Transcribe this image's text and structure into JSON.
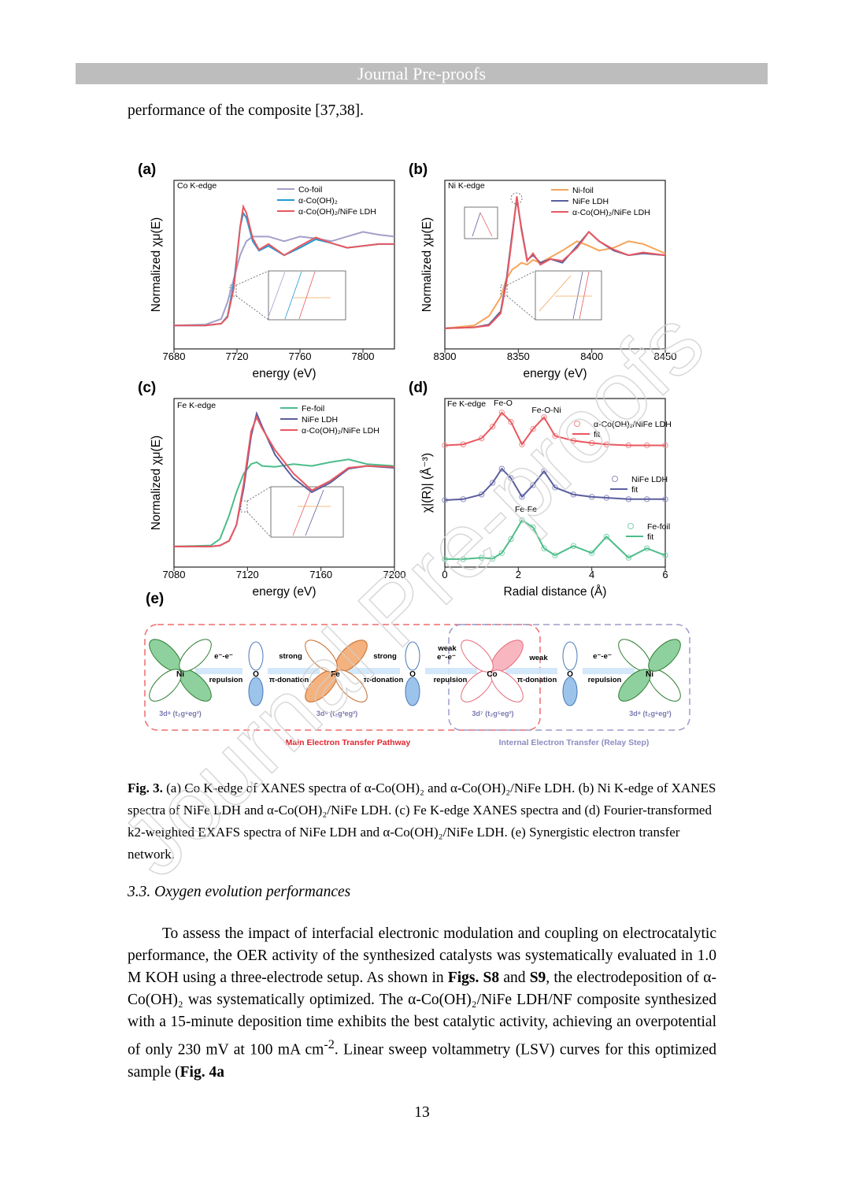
{
  "header": {
    "title": "Journal Pre-proofs"
  },
  "intro": "performance of the composite [37,38].",
  "chart_data": [
    {
      "type": "line",
      "label": "(a)",
      "annotation": "Co K-edge",
      "xlabel": "energy (eV)",
      "ylabel": "Normalized χμ(E)",
      "x": [
        7680,
        7700,
        7710,
        7714,
        7718,
        7722,
        7724,
        7726,
        7730,
        7734,
        7740,
        7750,
        7760,
        7770,
        7780,
        7790,
        7800,
        7810,
        7820
      ],
      "xlim": [
        7680,
        7820
      ],
      "xticks": [
        7680,
        7720,
        7760,
        7800
      ],
      "ylim": [
        -0.2,
        1.6
      ],
      "series": [
        {
          "name": "Co-foil",
          "color": "#a39fc9",
          "values": [
            0.05,
            0.06,
            0.12,
            0.3,
            0.55,
            0.8,
            0.88,
            0.95,
            1.0,
            1.0,
            1.0,
            0.95,
            1.0,
            0.98,
            0.95,
            1.0,
            1.05,
            1.02,
            1.0
          ]
        },
        {
          "name": "α-Co(OH)₂",
          "color": "#1f9bd7",
          "values": [
            0.05,
            0.05,
            0.07,
            0.15,
            0.5,
            1.1,
            1.25,
            1.2,
            0.95,
            0.85,
            0.9,
            0.8,
            0.88,
            0.97,
            0.93,
            0.88,
            0.9,
            0.92,
            0.92
          ]
        },
        {
          "name": "α-Co(OH)₂/NiFe LDH",
          "color": "#e8585f",
          "values": [
            0.05,
            0.05,
            0.07,
            0.14,
            0.45,
            1.1,
            1.32,
            1.25,
            0.98,
            0.86,
            0.92,
            0.8,
            0.9,
            0.99,
            0.93,
            0.88,
            0.9,
            0.92,
            0.92
          ]
        }
      ]
    },
    {
      "type": "line",
      "label": "(b)",
      "annotation": "Ni K-edge",
      "xlabel": "energy (eV)",
      "ylabel": "Normalized χμ(E)",
      "x": [
        8300,
        8320,
        8330,
        8338,
        8342,
        8346,
        8349,
        8352,
        8356,
        8360,
        8365,
        8372,
        8380,
        8390,
        8398,
        8405,
        8415,
        8425,
        8435,
        8450
      ],
      "xlim": [
        8300,
        8450
      ],
      "xticks": [
        8300,
        8350,
        8400,
        8450
      ],
      "ylim": [
        -0.2,
        1.6
      ],
      "series": [
        {
          "name": "Ni-foil",
          "color": "#f5a55a",
          "values": [
            0.02,
            0.05,
            0.15,
            0.35,
            0.55,
            0.65,
            0.68,
            0.72,
            0.7,
            0.75,
            0.72,
            0.78,
            0.85,
            0.95,
            0.9,
            0.85,
            0.88,
            0.95,
            0.92,
            0.82
          ]
        },
        {
          "name": "NiFe LDH",
          "color": "#5b5e9e",
          "values": [
            0.02,
            0.03,
            0.06,
            0.2,
            0.55,
            1.05,
            1.4,
            1.1,
            0.75,
            0.8,
            0.72,
            0.76,
            0.72,
            0.9,
            1.05,
            0.95,
            0.85,
            0.8,
            0.82,
            0.8
          ]
        },
        {
          "name": "α-Co(OH)₂/NiFe LDH",
          "color": "#e8585f",
          "values": [
            0.02,
            0.03,
            0.05,
            0.18,
            0.52,
            1.02,
            1.43,
            1.08,
            0.74,
            0.82,
            0.7,
            0.76,
            0.74,
            0.88,
            1.05,
            0.95,
            0.86,
            0.8,
            0.83,
            0.8
          ]
        }
      ]
    },
    {
      "type": "line",
      "label": "(c)",
      "annotation": "Fe K-edge",
      "xlabel": "energy (eV)",
      "ylabel": "Normalized χμ(E)",
      "x": [
        7080,
        7100,
        7105,
        7110,
        7114,
        7118,
        7122,
        7125,
        7128,
        7135,
        7145,
        7155,
        7165,
        7175,
        7185,
        7200
      ],
      "xlim": [
        7080,
        7200
      ],
      "xticks": [
        7080,
        7120,
        7160,
        7200
      ],
      "ylim": [
        -0.2,
        1.6
      ],
      "series": [
        {
          "name": "Fe-foil",
          "color": "#4dbd8a",
          "values": [
            0.02,
            0.03,
            0.1,
            0.35,
            0.6,
            0.8,
            0.9,
            0.92,
            0.88,
            0.87,
            0.9,
            0.88,
            0.92,
            0.95,
            0.9,
            0.88
          ]
        },
        {
          "name": "NiFe LDH",
          "color": "#5b5e9e",
          "values": [
            0.02,
            0.02,
            0.03,
            0.08,
            0.25,
            0.65,
            1.2,
            1.44,
            1.3,
            1.0,
            0.75,
            0.6,
            0.7,
            0.85,
            0.88,
            0.86
          ]
        },
        {
          "name": "α-Co(OH)₂/NiFe LDH",
          "color": "#e8585f",
          "values": [
            0.02,
            0.02,
            0.03,
            0.08,
            0.25,
            0.7,
            1.25,
            1.4,
            1.28,
            1.05,
            0.8,
            0.62,
            0.72,
            0.86,
            0.88,
            0.87
          ]
        }
      ]
    },
    {
      "type": "line",
      "label": "(d)",
      "annotations": [
        "Fe K-edge",
        "Fe-O",
        "Fe-O-Ni",
        "Fe-Fe"
      ],
      "xlabel": "Radial distance (Å)",
      "ylabel": "χ|(R)| (Å⁻³)",
      "x": [
        0,
        0.5,
        1,
        1.3,
        1.55,
        1.8,
        2.1,
        2.4,
        2.7,
        3,
        3.5,
        4,
        4.4,
        5,
        5.5,
        6
      ],
      "xlim": [
        0,
        6
      ],
      "xticks": [
        0,
        2,
        4,
        6
      ],
      "ylim": [
        0,
        3.6
      ],
      "series": [
        {
          "name": "α-Co(OH)₂/NiFe LDH",
          "style": "markers",
          "color": "#ef8a8d",
          "values": [
            2.6,
            2.62,
            2.75,
            3.0,
            3.3,
            3.1,
            2.62,
            2.95,
            3.2,
            2.8,
            2.7,
            2.65,
            2.62,
            2.6,
            2.6,
            2.6
          ]
        },
        {
          "name": "fit",
          "style": "line",
          "color": "#e8585f",
          "values": [
            2.6,
            2.62,
            2.75,
            3.0,
            3.3,
            3.1,
            2.62,
            2.95,
            3.2,
            2.8,
            2.7,
            2.65,
            2.62,
            2.6,
            2.6,
            2.6
          ]
        },
        {
          "name": "NiFe LDH",
          "style": "markers",
          "color": "#8e90bf",
          "values": [
            1.43,
            1.45,
            1.55,
            1.8,
            2.1,
            1.9,
            1.5,
            1.75,
            2.05,
            1.7,
            1.55,
            1.5,
            1.48,
            1.45,
            1.45,
            1.45
          ]
        },
        {
          "name": "fit",
          "style": "line",
          "color": "#5b5e9e",
          "values": [
            1.43,
            1.45,
            1.55,
            1.8,
            2.1,
            1.9,
            1.5,
            1.75,
            2.05,
            1.7,
            1.55,
            1.5,
            1.48,
            1.45,
            1.45,
            1.45
          ]
        },
        {
          "name": "Fe-foil",
          "style": "markers",
          "color": "#7fd0ab",
          "values": [
            0.17,
            0.17,
            0.2,
            0.18,
            0.3,
            0.6,
            1.0,
            0.85,
            0.4,
            0.25,
            0.45,
            0.3,
            0.65,
            0.2,
            0.4,
            0.25
          ]
        },
        {
          "name": "fit",
          "style": "line",
          "color": "#4dbd8a",
          "values": [
            0.17,
            0.17,
            0.2,
            0.18,
            0.3,
            0.6,
            1.0,
            0.85,
            0.4,
            0.25,
            0.45,
            0.3,
            0.65,
            0.2,
            0.4,
            0.25
          ]
        }
      ]
    }
  ],
  "diagram": {
    "label": "(e)",
    "atoms": [
      "Ni",
      "O",
      "Fe",
      "O",
      "Co",
      "O",
      "Ni"
    ],
    "interactions": [
      {
        "top": [
          "e⁻-e⁻"
        ],
        "bottom": "repulsion"
      },
      {
        "top": [
          "strong"
        ],
        "bottom": "π-donation"
      },
      {
        "top": [
          "strong"
        ],
        "bottom": "π-donation"
      },
      {
        "top": [
          "weak",
          "e⁻-e⁻"
        ],
        "bottom": "repulsion"
      },
      {
        "top": [
          "weak"
        ],
        "bottom": "π-donation"
      },
      {
        "top": [
          "e⁻-e⁻"
        ],
        "bottom": "repulsion"
      }
    ],
    "configs": [
      "3d⁸ (t₂g⁶eg²)",
      "3d⁵ (t₂g³eg²)",
      "3d⁷ (t₂g⁵eg²)",
      "3d⁸ (t₂g⁶eg²)"
    ],
    "pathways": [
      "Main Electron Transfer Pathway",
      "Internal Electron Transfer (Relay Step)"
    ]
  },
  "caption": {
    "label": "Fig. 3.",
    "text": "(a) Co K-edge of XANES spectra of α-Co(OH)₂ and α-Co(OH)₂/NiFe LDH. (b) Ni K-edge of XANES spectra of NiFe LDH and α-Co(OH)₂/NiFe LDH. (c) Fe K-edge XANES spectra and (d) Fourier-transformed k2-weighted EXAFS spectra of NiFe LDH and α-Co(OH)₂/NiFe LDH. (e) Synergistic electron transfer network."
  },
  "section": {
    "heading": "3.3. Oxygen evolution performances",
    "paragraph": [
      "To assess the impact of interfacial electronic modulation and coupling on electrocatalytic performance, the OER activity of the synthesized catalysts was systematically evaluated in 1.0 M KOH using a three-electrode setup. As shown in",
      "Figs. S8",
      "and",
      "S9",
      ", the electrodeposition of α-Co(OH)₂ was systematically optimized. The α-Co(OH)₂/NiFe LDH/NF composite synthesized with a 15-minute deposition time exhibits the best catalytic activity, achieving an overpotential of only 230 mV at 100 mA cm",
      "-2",
      ". Linear sweep voltammetry (LSV) curves for this optimized sample (",
      "Fig. 4a"
    ]
  },
  "page_number": "13",
  "watermark": "Journal Pre-proofs"
}
